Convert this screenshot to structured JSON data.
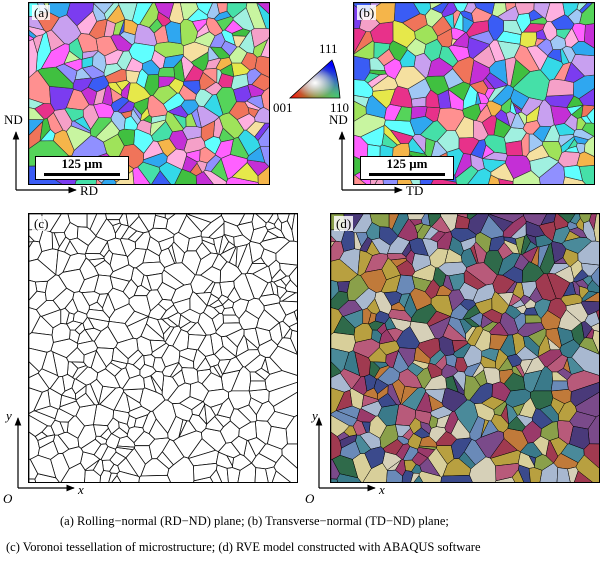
{
  "panels": {
    "a": {
      "label": "(a)",
      "scale_label": "125 μm",
      "axis_vertical": "ND",
      "axis_horizontal": "RD"
    },
    "b": {
      "label": "(b)",
      "scale_label": "125 μm",
      "axis_vertical": "ND",
      "axis_horizontal": "TD"
    },
    "c": {
      "label": "(c)",
      "axis_y": "y",
      "axis_x": "x",
      "origin": "O"
    },
    "d": {
      "label": "(d)",
      "axis_y": "y",
      "axis_x": "x",
      "origin": "O"
    }
  },
  "ipf_legend": {
    "top": "111",
    "left": "001",
    "right": "110"
  },
  "caption": {
    "line1": "(a) Rolling−normal (RD−ND) plane; (b) Transverse−normal (TD−ND) plane;",
    "line2": "(c) Voronoi tessellation of microstructure; (d) RVE model constructed with ABAQUS software"
  },
  "colors": {
    "ebsd_palette": [
      "#e8318a",
      "#c42fd6",
      "#7b3cf0",
      "#3a5cf5",
      "#2fa7f0",
      "#34d9e8",
      "#45e0a8",
      "#55d45a",
      "#9fe35a",
      "#e6e84a",
      "#f5b54a",
      "#f0745a",
      "#f5a0c8",
      "#c8a0f0",
      "#a0c8f5",
      "#a0f0e0",
      "#c8f5a0",
      "#f5e0a0",
      "#ff60ff",
      "#60ffff",
      "#9090ff",
      "#ff9090",
      "#40c040",
      "#ffb0e0"
    ],
    "rve_palette": [
      "#3b4a8c",
      "#2f6a4a",
      "#b8a040",
      "#d8cf9a",
      "#7a4a8a",
      "#a03a50",
      "#6a8ab8",
      "#4a8a9a",
      "#c07a3a",
      "#9a3a6a",
      "#8aa04a",
      "#d6d0b8",
      "#4a3a7a",
      "#b85a7a",
      "#3a7a8a",
      "#a8b8d0"
    ]
  }
}
